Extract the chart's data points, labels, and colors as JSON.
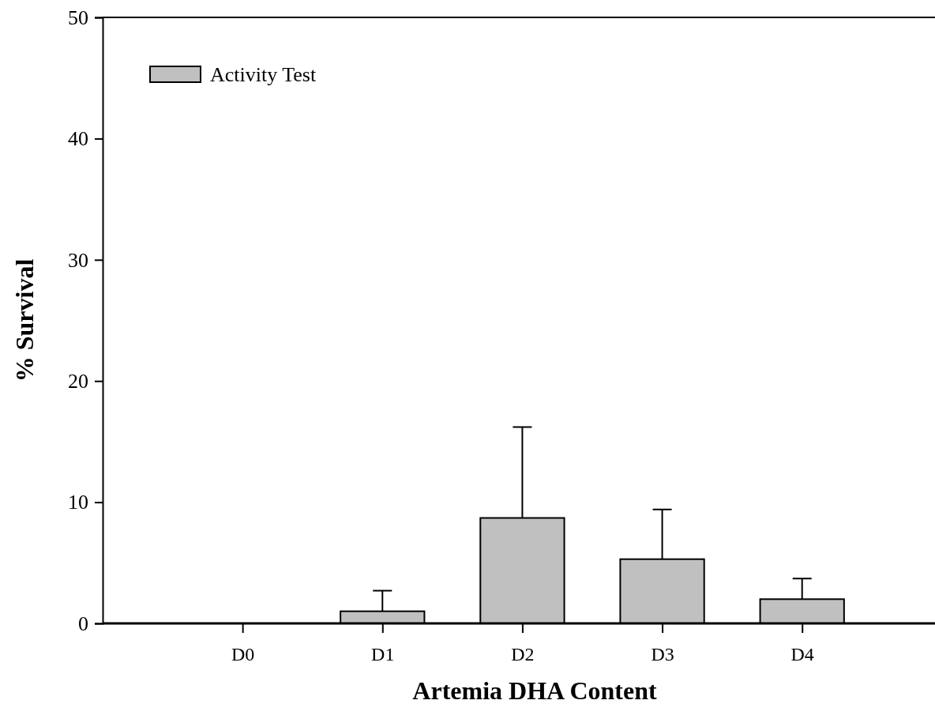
{
  "chart_data": {
    "type": "bar",
    "xlabel": "Artemia DHA Content",
    "ylabel": "% Survival",
    "categories": [
      "D0",
      "D1",
      "D2",
      "D3",
      "D4"
    ],
    "series": [
      {
        "name": "Activity Test",
        "color": "#c0c0c0",
        "values": [
          0,
          1.0,
          8.7,
          5.3,
          2.0
        ],
        "errors": [
          null,
          [
            1.0,
            2.7
          ],
          [
            8.7,
            16.2
          ],
          [
            5.3,
            9.4
          ],
          [
            2.0,
            3.7
          ]
        ]
      }
    ],
    "ylim": [
      0,
      50
    ],
    "yticks": [
      0,
      10,
      20,
      30,
      40,
      50
    ],
    "grid": false,
    "legend": "top left"
  }
}
